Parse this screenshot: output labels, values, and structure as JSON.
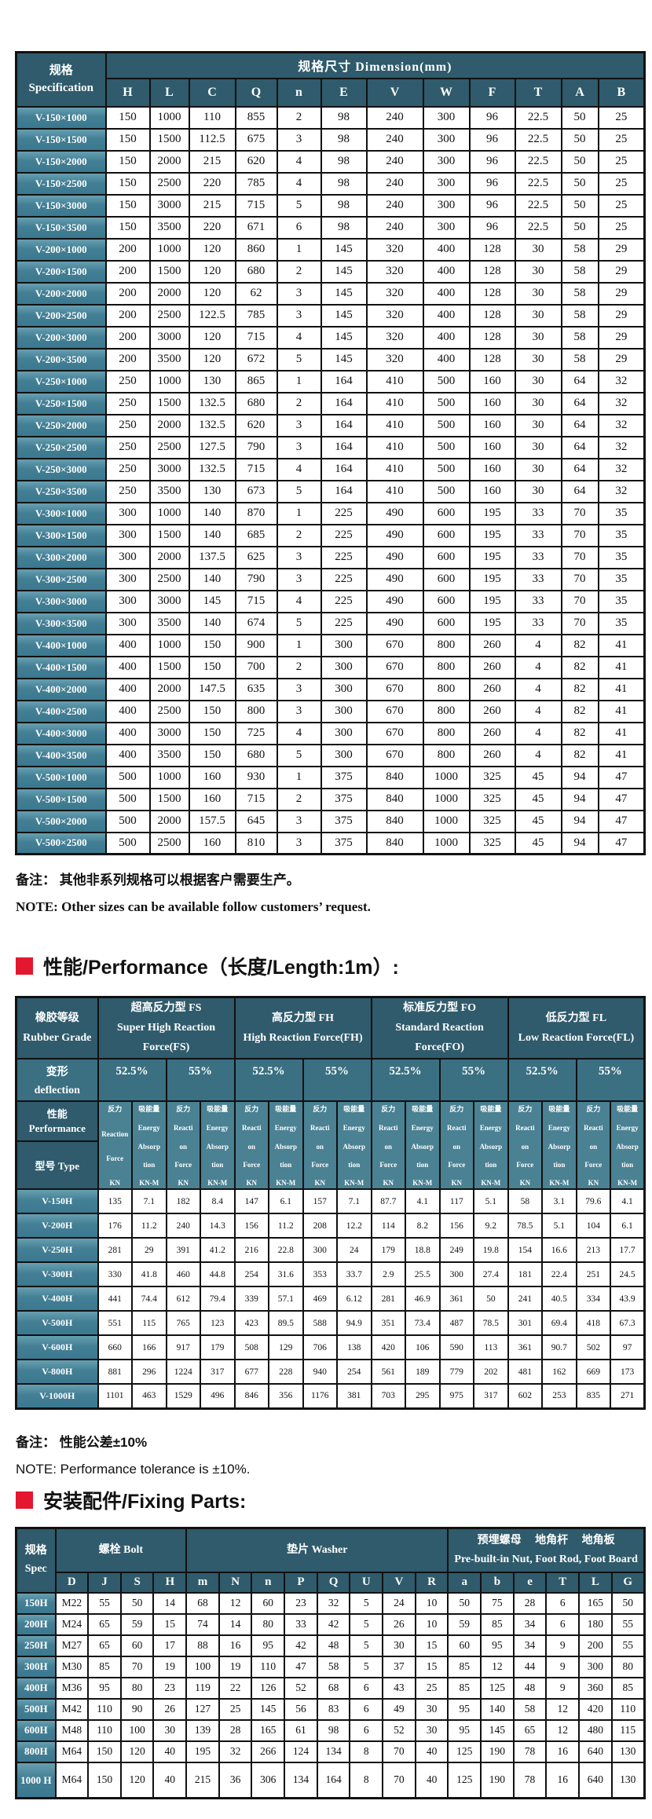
{
  "colors": {
    "header_dark_teal": "#2f5b6c",
    "header_mid_teal": "#3a7082",
    "subcolumn_teal": "#4a8193",
    "row_label_teal": "#417f95",
    "accent_red": "#e3172f",
    "cell_white": "#ffffff",
    "border_black": "#111111"
  },
  "dimension_table": {
    "corner_cn": "规格",
    "corner_en": "Specification",
    "group_header": "规格尺寸  Dimension(mm)",
    "columns": [
      "H",
      "L",
      "C",
      "Q",
      "n",
      "E",
      "V",
      "W",
      "F",
      "T",
      "A",
      "B"
    ],
    "rows": [
      {
        "spec": "V-150×1000",
        "values": [
          "150",
          "1000",
          "110",
          "855",
          "2",
          "98",
          "240",
          "300",
          "96",
          "22.5",
          "50",
          "25"
        ]
      },
      {
        "spec": "V-150×1500",
        "values": [
          "150",
          "1500",
          "112.5",
          "675",
          "3",
          "98",
          "240",
          "300",
          "96",
          "22.5",
          "50",
          "25"
        ]
      },
      {
        "spec": "V-150×2000",
        "values": [
          "150",
          "2000",
          "215",
          "620",
          "4",
          "98",
          "240",
          "300",
          "96",
          "22.5",
          "50",
          "25"
        ]
      },
      {
        "spec": "V-150×2500",
        "values": [
          "150",
          "2500",
          "220",
          "785",
          "4",
          "98",
          "240",
          "300",
          "96",
          "22.5",
          "50",
          "25"
        ]
      },
      {
        "spec": "V-150×3000",
        "values": [
          "150",
          "3000",
          "215",
          "715",
          "5",
          "98",
          "240",
          "300",
          "96",
          "22.5",
          "50",
          "25"
        ]
      },
      {
        "spec": "V-150×3500",
        "values": [
          "150",
          "3500",
          "220",
          "671",
          "6",
          "98",
          "240",
          "300",
          "96",
          "22.5",
          "50",
          "25"
        ]
      },
      {
        "spec": "V-200×1000",
        "values": [
          "200",
          "1000",
          "120",
          "860",
          "1",
          "145",
          "320",
          "400",
          "128",
          "30",
          "58",
          "29"
        ]
      },
      {
        "spec": "V-200×1500",
        "values": [
          "200",
          "1500",
          "120",
          "680",
          "2",
          "145",
          "320",
          "400",
          "128",
          "30",
          "58",
          "29"
        ]
      },
      {
        "spec": "V-200×2000",
        "values": [
          "200",
          "2000",
          "120",
          "62",
          "3",
          "145",
          "320",
          "400",
          "128",
          "30",
          "58",
          "29"
        ]
      },
      {
        "spec": "V-200×2500",
        "values": [
          "200",
          "2500",
          "122.5",
          "785",
          "3",
          "145",
          "320",
          "400",
          "128",
          "30",
          "58",
          "29"
        ]
      },
      {
        "spec": "V-200×3000",
        "values": [
          "200",
          "3000",
          "120",
          "715",
          "4",
          "145",
          "320",
          "400",
          "128",
          "30",
          "58",
          "29"
        ]
      },
      {
        "spec": "V-200×3500",
        "values": [
          "200",
          "3500",
          "120",
          "672",
          "5",
          "145",
          "320",
          "400",
          "128",
          "30",
          "58",
          "29"
        ]
      },
      {
        "spec": "V-250×1000",
        "values": [
          "250",
          "1000",
          "130",
          "865",
          "1",
          "164",
          "410",
          "500",
          "160",
          "30",
          "64",
          "32"
        ]
      },
      {
        "spec": "V-250×1500",
        "values": [
          "250",
          "1500",
          "132.5",
          "680",
          "2",
          "164",
          "410",
          "500",
          "160",
          "30",
          "64",
          "32"
        ]
      },
      {
        "spec": "V-250×2000",
        "values": [
          "250",
          "2000",
          "132.5",
          "620",
          "3",
          "164",
          "410",
          "500",
          "160",
          "30",
          "64",
          "32"
        ]
      },
      {
        "spec": "V-250×2500",
        "values": [
          "250",
          "2500",
          "127.5",
          "790",
          "3",
          "164",
          "410",
          "500",
          "160",
          "30",
          "64",
          "32"
        ]
      },
      {
        "spec": "V-250×3000",
        "values": [
          "250",
          "3000",
          "132.5",
          "715",
          "4",
          "164",
          "410",
          "500",
          "160",
          "30",
          "64",
          "32"
        ]
      },
      {
        "spec": "V-250×3500",
        "values": [
          "250",
          "3500",
          "130",
          "673",
          "5",
          "164",
          "410",
          "500",
          "160",
          "30",
          "64",
          "32"
        ]
      },
      {
        "spec": "V-300×1000",
        "values": [
          "300",
          "1000",
          "140",
          "870",
          "1",
          "225",
          "490",
          "600",
          "195",
          "33",
          "70",
          "35"
        ]
      },
      {
        "spec": "V-300×1500",
        "values": [
          "300",
          "1500",
          "140",
          "685",
          "2",
          "225",
          "490",
          "600",
          "195",
          "33",
          "70",
          "35"
        ]
      },
      {
        "spec": "V-300×2000",
        "values": [
          "300",
          "2000",
          "137.5",
          "625",
          "3",
          "225",
          "490",
          "600",
          "195",
          "33",
          "70",
          "35"
        ]
      },
      {
        "spec": "V-300×2500",
        "values": [
          "300",
          "2500",
          "140",
          "790",
          "3",
          "225",
          "490",
          "600",
          "195",
          "33",
          "70",
          "35"
        ]
      },
      {
        "spec": "V-300×3000",
        "values": [
          "300",
          "3000",
          "145",
          "715",
          "4",
          "225",
          "490",
          "600",
          "195",
          "33",
          "70",
          "35"
        ]
      },
      {
        "spec": "V-300×3500",
        "values": [
          "300",
          "3500",
          "140",
          "674",
          "5",
          "225",
          "490",
          "600",
          "195",
          "33",
          "70",
          "35"
        ]
      },
      {
        "spec": "V-400×1000",
        "values": [
          "400",
          "1000",
          "150",
          "900",
          "1",
          "300",
          "670",
          "800",
          "260",
          "4",
          "82",
          "41"
        ]
      },
      {
        "spec": "V-400×1500",
        "values": [
          "400",
          "1500",
          "150",
          "700",
          "2",
          "300",
          "670",
          "800",
          "260",
          "4",
          "82",
          "41"
        ]
      },
      {
        "spec": "V-400×2000",
        "values": [
          "400",
          "2000",
          "147.5",
          "635",
          "3",
          "300",
          "670",
          "800",
          "260",
          "4",
          "82",
          "41"
        ]
      },
      {
        "spec": "V-400×2500",
        "values": [
          "400",
          "2500",
          "150",
          "800",
          "3",
          "300",
          "670",
          "800",
          "260",
          "4",
          "82",
          "41"
        ]
      },
      {
        "spec": "V-400×3000",
        "values": [
          "400",
          "3000",
          "150",
          "725",
          "4",
          "300",
          "670",
          "800",
          "260",
          "4",
          "82",
          "41"
        ]
      },
      {
        "spec": "V-400×3500",
        "values": [
          "400",
          "3500",
          "150",
          "680",
          "5",
          "300",
          "670",
          "800",
          "260",
          "4",
          "82",
          "41"
        ]
      },
      {
        "spec": "V-500×1000",
        "values": [
          "500",
          "1000",
          "160",
          "930",
          "1",
          "375",
          "840",
          "1000",
          "325",
          "45",
          "94",
          "47"
        ]
      },
      {
        "spec": "V-500×1500",
        "values": [
          "500",
          "1500",
          "160",
          "715",
          "2",
          "375",
          "840",
          "1000",
          "325",
          "45",
          "94",
          "47"
        ]
      },
      {
        "spec": "V-500×2000",
        "values": [
          "500",
          "2000",
          "157.5",
          "645",
          "3",
          "375",
          "840",
          "1000",
          "325",
          "45",
          "94",
          "47"
        ]
      },
      {
        "spec": "V-500×2500",
        "values": [
          "500",
          "2500",
          "160",
          "810",
          "3",
          "375",
          "840",
          "1000",
          "325",
          "45",
          "94",
          "47"
        ]
      }
    ]
  },
  "note1": {
    "cn": "备注：  其他非系列规格可以根据客户需要生产。",
    "en": "NOTE: Other sizes can be available follow customers’  request."
  },
  "section1_title": "性能/Performance（长度/Length:1m）:",
  "performance_table": {
    "corner_cn": "橡胶等级",
    "corner_en": "Rubber Grade",
    "groups": [
      {
        "cn": "超高反力型 FS",
        "en": "Super High Reaction Force(FS)"
      },
      {
        "cn": "高反力型 FH",
        "en": "High Reaction Force(FH)"
      },
      {
        "cn": "标准反力型 FO",
        "en": "Standard Reaction Force(FO)"
      },
      {
        "cn": "低反力型 FL",
        "en": "Low Reaction Force(FL)"
      }
    ],
    "deflection_cn": "变形",
    "deflection_en": "deflection",
    "deflection_values": [
      "52.5%",
      "55%",
      "52.5%",
      "55%",
      "52.5%",
      "55%",
      "52.5%",
      "55%"
    ],
    "perf_cn": "性能",
    "perf_en": "Performance",
    "type_label": "型号  Type",
    "force_lines_first": [
      "反力",
      "Reaction",
      "Force",
      "KN"
    ],
    "force_lines": [
      "反力",
      "Reacti",
      "on",
      "Force",
      "KN"
    ],
    "energy_lines": [
      "吸能量",
      "Energy",
      "Absorp",
      "tion",
      "KN-M"
    ],
    "rows": [
      {
        "type": "V-150H",
        "values": [
          "135",
          "7.1",
          "182",
          "8.4",
          "147",
          "6.1",
          "157",
          "7.1",
          "87.7",
          "4.1",
          "117",
          "5.1",
          "58",
          "3.1",
          "79.6",
          "4.1"
        ]
      },
      {
        "type": "V-200H",
        "values": [
          "176",
          "11.2",
          "240",
          "14.3",
          "156",
          "11.2",
          "208",
          "12.2",
          "114",
          "8.2",
          "156",
          "9.2",
          "78.5",
          "5.1",
          "104",
          "6.1"
        ]
      },
      {
        "type": "V-250H",
        "values": [
          "281",
          "29",
          "391",
          "41.2",
          "216",
          "22.8",
          "300",
          "24",
          "179",
          "18.8",
          "249",
          "19.8",
          "154",
          "16.6",
          "213",
          "17.7"
        ]
      },
      {
        "type": "V-300H",
        "values": [
          "330",
          "41.8",
          "460",
          "44.8",
          "254",
          "31.6",
          "353",
          "33.7",
          "2.9",
          "25.5",
          "300",
          "27.4",
          "181",
          "22.4",
          "251",
          "24.5"
        ]
      },
      {
        "type": "V-400H",
        "values": [
          "441",
          "74.4",
          "612",
          "79.4",
          "339",
          "57.1",
          "469",
          "6.12",
          "281",
          "46.9",
          "361",
          "50",
          "241",
          "40.5",
          "334",
          "43.9"
        ]
      },
      {
        "type": "V-500H",
        "values": [
          "551",
          "115",
          "765",
          "123",
          "423",
          "89.5",
          "588",
          "94.9",
          "351",
          "73.4",
          "487",
          "78.5",
          "301",
          "69.4",
          "418",
          "67.3"
        ]
      },
      {
        "type": "V-600H",
        "values": [
          "660",
          "166",
          "917",
          "179",
          "508",
          "129",
          "706",
          "138",
          "420",
          "106",
          "590",
          "113",
          "361",
          "90.7",
          "502",
          "97"
        ]
      },
      {
        "type": "V-800H",
        "values": [
          "881",
          "296",
          "1224",
          "317",
          "677",
          "228",
          "940",
          "254",
          "561",
          "189",
          "779",
          "202",
          "481",
          "162",
          "669",
          "173"
        ]
      },
      {
        "type": "V-1000H",
        "values": [
          "1101",
          "463",
          "1529",
          "496",
          "846",
          "356",
          "1176",
          "381",
          "703",
          "295",
          "975",
          "317",
          "602",
          "253",
          "835",
          "271"
        ]
      }
    ]
  },
  "note2": {
    "cn": "备注：  性能公差±10%",
    "en": "NOTE: Performance tolerance is  ±10%."
  },
  "section2_title": "安装配件/Fixing Parts:",
  "fixing_table": {
    "corner_cn": "规格",
    "corner_en": "Spec",
    "groups": [
      {
        "label_cn": "螺栓  Bolt",
        "label_en": "",
        "cols": [
          "D",
          "J",
          "S",
          "H"
        ]
      },
      {
        "label_cn": "垫片  Washer",
        "label_en": "",
        "cols": [
          "m",
          "N",
          "n",
          "P",
          "Q",
          "U",
          "V",
          "R"
        ]
      },
      {
        "label_cn": "预埋螺母　 地角杆 　地角板",
        "label_en": "Pre-built-in Nut, Foot Rod, Foot Board",
        "cols": [
          "a",
          "b",
          "e",
          "T",
          "L",
          "G"
        ]
      }
    ],
    "rows": [
      {
        "spec": "150H",
        "values": [
          "M22",
          "55",
          "50",
          "14",
          "68",
          "12",
          "60",
          "23",
          "32",
          "5",
          "24",
          "10",
          "50",
          "75",
          "28",
          "6",
          "165",
          "50"
        ]
      },
      {
        "spec": "200H",
        "values": [
          "M24",
          "65",
          "59",
          "15",
          "74",
          "14",
          "80",
          "33",
          "42",
          "5",
          "26",
          "10",
          "59",
          "85",
          "34",
          "6",
          "180",
          "55"
        ]
      },
      {
        "spec": "250H",
        "values": [
          "M27",
          "65",
          "60",
          "17",
          "88",
          "16",
          "95",
          "42",
          "48",
          "5",
          "30",
          "15",
          "60",
          "95",
          "34",
          "9",
          "200",
          "55"
        ]
      },
      {
        "spec": "300H",
        "values": [
          "M30",
          "85",
          "70",
          "19",
          "100",
          "19",
          "110",
          "47",
          "58",
          "5",
          "37",
          "15",
          "85",
          "12",
          "44",
          "9",
          "300",
          "80"
        ]
      },
      {
        "spec": "400H",
        "values": [
          "M36",
          "95",
          "80",
          "23",
          "119",
          "22",
          "126",
          "52",
          "68",
          "6",
          "43",
          "25",
          "85",
          "125",
          "48",
          "9",
          "360",
          "85"
        ]
      },
      {
        "spec": "500H",
        "values": [
          "M42",
          "110",
          "90",
          "26",
          "127",
          "25",
          "145",
          "56",
          "83",
          "6",
          "49",
          "30",
          "95",
          "140",
          "58",
          "12",
          "420",
          "110"
        ]
      },
      {
        "spec": "600H",
        "values": [
          "M48",
          "110",
          "100",
          "30",
          "139",
          "28",
          "165",
          "61",
          "98",
          "6",
          "52",
          "30",
          "95",
          "145",
          "65",
          "12",
          "480",
          "115"
        ]
      },
      {
        "spec": "800H",
        "values": [
          "M64",
          "150",
          "120",
          "40",
          "195",
          "32",
          "266",
          "124",
          "134",
          "8",
          "70",
          "40",
          "125",
          "190",
          "78",
          "16",
          "640",
          "130"
        ]
      },
      {
        "spec": "1000 H",
        "values": [
          "M64",
          "150",
          "120",
          "40",
          "215",
          "36",
          "306",
          "134",
          "164",
          "8",
          "70",
          "40",
          "125",
          "190",
          "78",
          "16",
          "640",
          "130"
        ]
      }
    ]
  }
}
